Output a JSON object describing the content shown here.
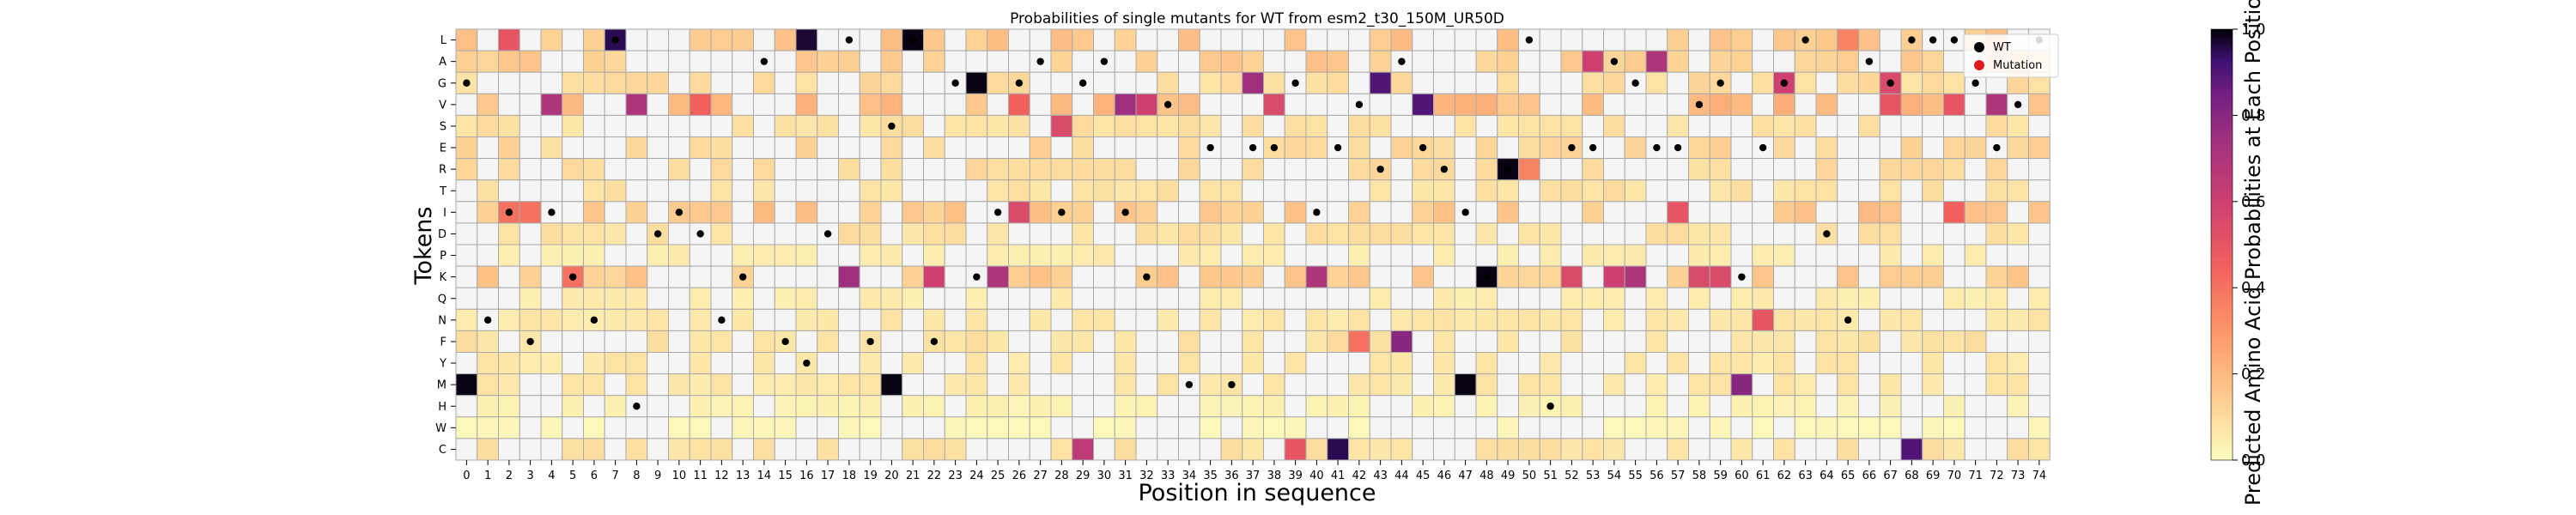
{
  "chart_data": {
    "type": "heatmap",
    "title": "Probabilities of single mutants for WT from esm2_t30_150M_UR50D",
    "xlabel": "Position in sequence",
    "ylabel": "Tokens",
    "x": [
      0,
      1,
      2,
      3,
      4,
      5,
      6,
      7,
      8,
      9,
      10,
      11,
      12,
      13,
      14,
      15,
      16,
      17,
      18,
      19,
      20,
      21,
      22,
      23,
      24,
      25,
      26,
      27,
      28,
      29,
      30,
      31,
      32,
      33,
      34,
      35,
      36,
      37,
      38,
      39,
      40,
      41,
      42,
      43,
      44,
      45,
      46,
      47,
      48,
      49,
      50,
      51,
      52,
      53,
      54,
      55,
      56,
      57,
      58,
      59,
      60,
      61,
      62,
      63,
      64,
      65,
      66,
      67,
      68,
      69,
      70,
      71,
      72,
      73,
      74
    ],
    "y": [
      "L",
      "A",
      "G",
      "V",
      "S",
      "E",
      "R",
      "T",
      "I",
      "D",
      "P",
      "K",
      "Q",
      "N",
      "F",
      "Y",
      "M",
      "H",
      "W",
      "C"
    ],
    "colorbar": {
      "label": "Predicted Amino Acid Probabilities at Each Position",
      "range": [
        0.0,
        1.0
      ],
      "ticks": [
        "0.0",
        "0.2",
        "0.4",
        "0.6",
        "0.8",
        "1.0"
      ],
      "colormap": "magma_r"
    },
    "legend": {
      "position": "top-right",
      "entries": [
        {
          "label": "WT",
          "color": "#000000"
        },
        {
          "label": "Mutation",
          "color": "#e31a1c"
        }
      ]
    },
    "wt_sequence": "GNIFIKNLHDIDNKAFYDLFSLFGKIGAIGAIKVMEMEEGIEVRAERIKRLHEEAGEEVGKEGLDNAGLLLGEVL",
    "strong_cells": [
      {
        "aa": "L",
        "pos": 7,
        "value": 0.95
      },
      {
        "aa": "L",
        "pos": 16,
        "value": 0.97
      },
      {
        "aa": "L",
        "pos": 21,
        "value": 0.99
      },
      {
        "aa": "L",
        "pos": 2,
        "value": 0.5
      },
      {
        "aa": "L",
        "pos": 65,
        "value": 0.35
      },
      {
        "aa": "A",
        "pos": 53,
        "value": 0.6
      },
      {
        "aa": "A",
        "pos": 56,
        "value": 0.7
      },
      {
        "aa": "G",
        "pos": 24,
        "value": 0.99
      },
      {
        "aa": "G",
        "pos": 37,
        "value": 0.75
      },
      {
        "aa": "G",
        "pos": 43,
        "value": 0.9
      },
      {
        "aa": "G",
        "pos": 62,
        "value": 0.6
      },
      {
        "aa": "G",
        "pos": 67,
        "value": 0.55
      },
      {
        "aa": "V",
        "pos": 4,
        "value": 0.7
      },
      {
        "aa": "V",
        "pos": 8,
        "value": 0.7
      },
      {
        "aa": "V",
        "pos": 31,
        "value": 0.75
      },
      {
        "aa": "V",
        "pos": 32,
        "value": 0.6
      },
      {
        "aa": "V",
        "pos": 45,
        "value": 0.9
      },
      {
        "aa": "V",
        "pos": 72,
        "value": 0.7
      },
      {
        "aa": "V",
        "pos": 26,
        "value": 0.45
      },
      {
        "aa": "V",
        "pos": 38,
        "value": 0.55
      },
      {
        "aa": "V",
        "pos": 67,
        "value": 0.5
      },
      {
        "aa": "V",
        "pos": 70,
        "value": 0.5
      },
      {
        "aa": "V",
        "pos": 11,
        "value": 0.45
      },
      {
        "aa": "S",
        "pos": 28,
        "value": 0.55
      },
      {
        "aa": "R",
        "pos": 49,
        "value": 0.99
      },
      {
        "aa": "R",
        "pos": 50,
        "value": 0.35
      },
      {
        "aa": "I",
        "pos": 2,
        "value": 0.4
      },
      {
        "aa": "I",
        "pos": 3,
        "value": 0.4
      },
      {
        "aa": "I",
        "pos": 26,
        "value": 0.55
      },
      {
        "aa": "I",
        "pos": 57,
        "value": 0.5
      },
      {
        "aa": "I",
        "pos": 70,
        "value": 0.45
      },
      {
        "aa": "K",
        "pos": 5,
        "value": 0.4
      },
      {
        "aa": "K",
        "pos": 18,
        "value": 0.75
      },
      {
        "aa": "K",
        "pos": 22,
        "value": 0.6
      },
      {
        "aa": "K",
        "pos": 25,
        "value": 0.7
      },
      {
        "aa": "K",
        "pos": 40,
        "value": 0.7
      },
      {
        "aa": "K",
        "pos": 48,
        "value": 0.99
      },
      {
        "aa": "K",
        "pos": 52,
        "value": 0.55
      },
      {
        "aa": "K",
        "pos": 54,
        "value": 0.6
      },
      {
        "aa": "K",
        "pos": 55,
        "value": 0.7
      },
      {
        "aa": "K",
        "pos": 58,
        "value": 0.55
      },
      {
        "aa": "K",
        "pos": 59,
        "value": 0.55
      },
      {
        "aa": "N",
        "pos": 61,
        "value": 0.5
      },
      {
        "aa": "F",
        "pos": 42,
        "value": 0.4
      },
      {
        "aa": "F",
        "pos": 44,
        "value": 0.8
      },
      {
        "aa": "M",
        "pos": 0,
        "value": 0.99
      },
      {
        "aa": "M",
        "pos": 20,
        "value": 0.99
      },
      {
        "aa": "M",
        "pos": 47,
        "value": 0.99
      },
      {
        "aa": "M",
        "pos": 60,
        "value": 0.8
      },
      {
        "aa": "C",
        "pos": 29,
        "value": 0.65
      },
      {
        "aa": "C",
        "pos": 41,
        "value": 0.95
      },
      {
        "aa": "C",
        "pos": 68,
        "value": 0.9
      },
      {
        "aa": "C",
        "pos": 39,
        "value": 0.5
      }
    ]
  }
}
